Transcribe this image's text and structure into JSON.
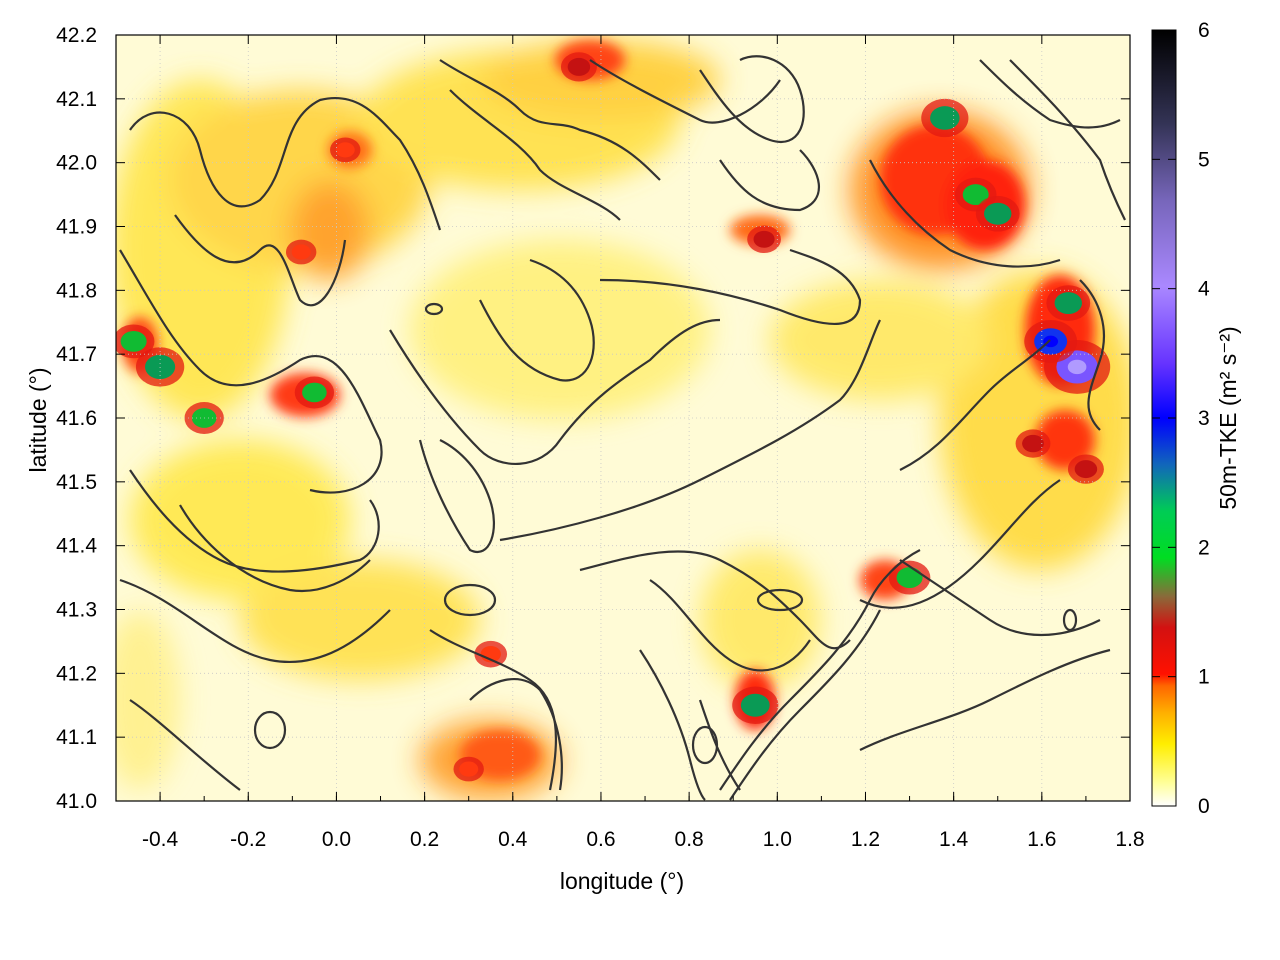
{
  "chart_data": {
    "type": "heatmap",
    "title": "",
    "xlabel": "longitude (°)",
    "ylabel": "latitude (°)",
    "xlim": [
      -0.5,
      1.8
    ],
    "ylim": [
      41.0,
      42.2
    ],
    "x_ticks": [
      -0.4,
      -0.2,
      0.0,
      0.2,
      0.4,
      0.6,
      0.8,
      1.0,
      1.2,
      1.4,
      1.6,
      1.8
    ],
    "x_tick_labels": [
      "-0.4",
      "-0.2",
      "0.0",
      "0.2",
      "0.4",
      "0.6",
      "0.8",
      "1.0",
      "1.2",
      "1.4",
      "1.6",
      "1.8"
    ],
    "y_ticks": [
      41.0,
      41.1,
      41.2,
      41.3,
      41.4,
      41.5,
      41.6,
      41.7,
      41.8,
      41.9,
      42.0,
      42.1,
      42.2
    ],
    "y_tick_labels": [
      "41.0",
      "41.1",
      "41.2",
      "41.3",
      "41.4",
      "41.5",
      "41.6",
      "41.7",
      "41.8",
      "41.9",
      "42.0",
      "42.1",
      "42.2"
    ],
    "grid": true,
    "colorbar": {
      "label": "50m-TKE (m² s⁻²)",
      "range": [
        0,
        6
      ],
      "ticks": [
        0,
        1,
        2,
        3,
        4,
        5,
        6
      ],
      "tick_labels": [
        "0",
        "1",
        "2",
        "3",
        "4",
        "5",
        "6"
      ],
      "colors": [
        "#ffffff",
        "#ffff66",
        "#ffcc00",
        "#ff8800",
        "#ff2200",
        "#cc1111",
        "#996633",
        "#00cc33",
        "#1166cc",
        "#0000ff",
        "#9966ff",
        "#aa88ee",
        "#333355",
        "#000000"
      ]
    },
    "hotspots": [
      {
        "lon": 1.45,
        "lat": 41.95,
        "tke": 2.0
      },
      {
        "lon": 1.38,
        "lat": 42.07,
        "tke": 2.5
      },
      {
        "lon": 1.5,
        "lat": 41.92,
        "tke": 2.2
      },
      {
        "lon": 1.68,
        "lat": 41.68,
        "tke": 4.2
      },
      {
        "lon": 1.62,
        "lat": 41.72,
        "tke": 3.0
      },
      {
        "lon": 1.66,
        "lat": 41.78,
        "tke": 2.2
      },
      {
        "lon": 1.58,
        "lat": 41.56,
        "tke": 1.4
      },
      {
        "lon": 1.7,
        "lat": 41.52,
        "tke": 1.5
      },
      {
        "lon": 1.3,
        "lat": 41.35,
        "tke": 2.0
      },
      {
        "lon": 0.95,
        "lat": 41.15,
        "tke": 2.4
      },
      {
        "lon": -0.46,
        "lat": 41.72,
        "tke": 2.0
      },
      {
        "lon": -0.4,
        "lat": 41.68,
        "tke": 2.6
      },
      {
        "lon": -0.05,
        "lat": 41.64,
        "tke": 1.8
      },
      {
        "lon": -0.3,
        "lat": 41.6,
        "tke": 1.8
      },
      {
        "lon": 0.35,
        "lat": 41.23,
        "tke": 1.2
      },
      {
        "lon": 0.3,
        "lat": 41.05,
        "tke": 1.0
      },
      {
        "lon": 0.55,
        "lat": 42.15,
        "tke": 1.5
      },
      {
        "lon": 0.97,
        "lat": 41.88,
        "tke": 1.3
      },
      {
        "lon": 0.02,
        "lat": 42.02,
        "tke": 1.0
      },
      {
        "lon": -0.08,
        "lat": 41.86,
        "tke": 1.0
      }
    ]
  }
}
